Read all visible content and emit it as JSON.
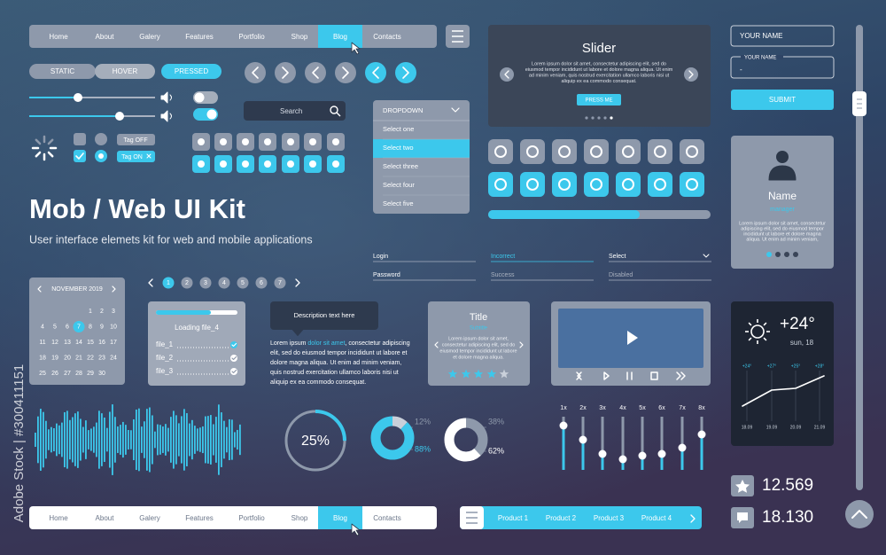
{
  "watermark": "Adobe Stock | #300411151",
  "nav_top": {
    "items": [
      "Home",
      "About",
      "Galery",
      "Features",
      "Portfolio",
      "Shop",
      "Blog",
      "Contacts"
    ],
    "active": 6
  },
  "buttons": [
    "STATIC",
    "HOVER",
    "PRESSED"
  ],
  "search": "Search",
  "tags": [
    "Tag OFF",
    "Tag ON"
  ],
  "dropdown": {
    "title": "DROPDOWN",
    "options": [
      "Select one",
      "Select two",
      "Select three",
      "Select four",
      "Select five"
    ],
    "selected": 1
  },
  "slider_card": {
    "title": "Slider",
    "lines": [
      "Lorem ipsum dolor sit amet, consectetur adipiscing elit, sed do",
      "eiusmod tempor incididunt ut labore et dolore magna aliqua. Ut enim",
      "ad minim veniam, quis nostrud exercitation ullamco laboris nisi ut",
      "aliquip ex ea commodo consequat."
    ],
    "button": "PRESS ME"
  },
  "form": {
    "placeholder": "YOUR NAME",
    "label": "YOUR NAME",
    "value": "-",
    "submit": "SUBMIT"
  },
  "profile": {
    "name": "Name",
    "role": "manager",
    "lines": [
      "Lorem ipsum dolor sit amet, consectetur",
      "adipiscing elit, sed do eiusmod tempor",
      "incididunt ut labore et dolore magna",
      "aliqua. Ut enim ad minim veniam,"
    ]
  },
  "hero": {
    "title": "Mob / Web UI Kit",
    "subtitle": "User interface elemets kit for web and mobile applications"
  },
  "fields": [
    [
      "Login",
      "Incorrect",
      "Select"
    ],
    [
      "Password",
      "Success",
      "Disabled"
    ]
  ],
  "calendar": {
    "month": "NOVEMBER 2019",
    "days": [
      "1",
      "2",
      "3",
      "4",
      "5",
      "6",
      "7",
      "8",
      "9",
      "10",
      "11",
      "12",
      "13",
      "14",
      "15",
      "16",
      "17",
      "18",
      "19",
      "20",
      "21",
      "22",
      "23",
      "24",
      "25",
      "26",
      "27",
      "28",
      "29",
      "30"
    ],
    "selected": 6
  },
  "pagination": [
    "1",
    "2",
    "3",
    "4",
    "5",
    "6",
    "7"
  ],
  "loading": {
    "title": "Loading file_4",
    "files": [
      "file_1",
      "file_2",
      "file_3"
    ]
  },
  "description": {
    "tooltip": "Description text here",
    "first_line": [
      "Lorem ipsum ",
      "dolor sit amet",
      ", consectetur adipiscing"
    ],
    "lines": [
      "elit, sed do eiusmod tempor incididunt ut labore et",
      "dolore magna aliqua. Ut enim ad minim veniam,",
      "quis nostrud exercitation ullamco laboris nisi ut",
      "aliquip ex ea commodo consequat."
    ]
  },
  "title_card": {
    "title": "Title",
    "subtitle": "Subtitle",
    "lines": [
      "Lorem ipsum dolor sit amet,",
      "consectetur adipiscing elit, sed do",
      "eiusmod tempor incididunt ut labore",
      "et dolore magna aliqua."
    ]
  },
  "weather": {
    "temp": "+24°",
    "day": "sun, 18",
    "temps": [
      "+24°",
      "+27°",
      "+25°",
      "+28°"
    ],
    "dates": [
      "18.09",
      "19.09",
      "20.09",
      "21.09"
    ]
  },
  "equalizer": [
    "1x",
    "2x",
    "3x",
    "4x",
    "5x",
    "6x",
    "7x",
    "8x"
  ],
  "donuts": [
    {
      "value": 25,
      "label": "25%"
    },
    {
      "slices": [
        {
          "value": 12,
          "label": "12%"
        },
        {
          "value": 88,
          "label": "88%"
        }
      ]
    },
    {
      "slices": [
        {
          "value": 38,
          "label": "38%"
        },
        {
          "value": 62,
          "label": "62%"
        }
      ]
    }
  ],
  "nav_bottom": {
    "items": [
      "Home",
      "About",
      "Galery",
      "Features",
      "Portfolio",
      "Shop",
      "Blog",
      "Contacts"
    ],
    "active": 6
  },
  "products": [
    "Product 1",
    "Product 2",
    "Product 3",
    "Product 4"
  ],
  "stats": [
    "12.569",
    "18.130"
  ]
}
